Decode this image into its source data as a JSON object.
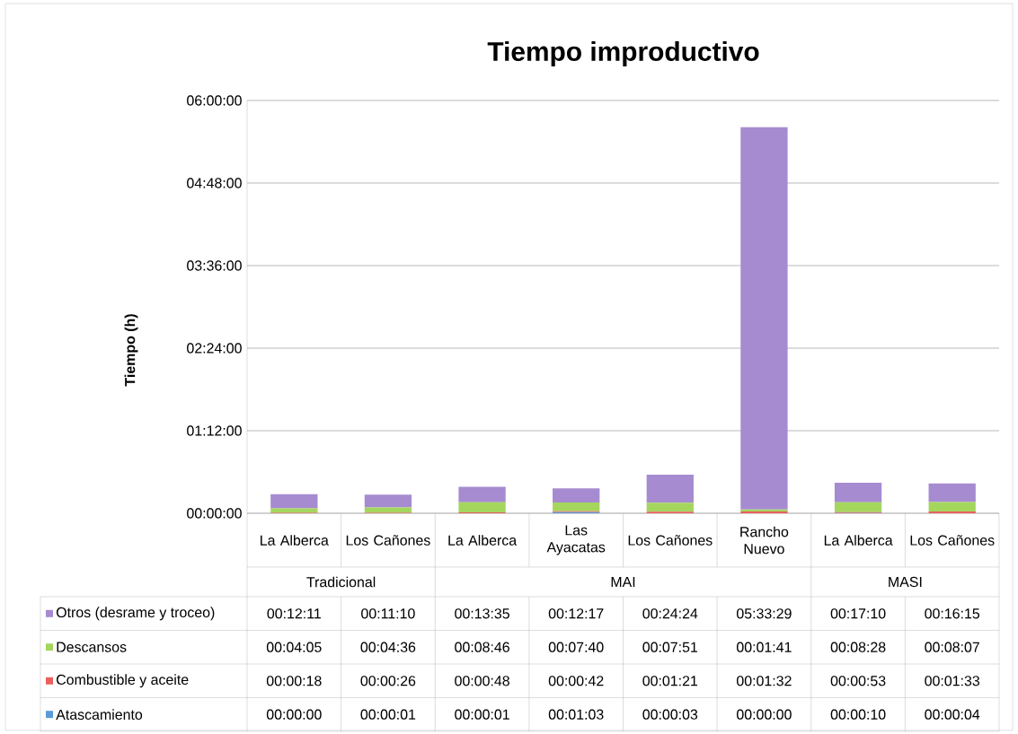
{
  "chart_data": {
    "type": "bar",
    "title": "Tiempo improductivo",
    "ylabel": "Tiempo (h)",
    "categories": [
      "La Alberca",
      "Los Cañones",
      "La Alberca",
      "Las Ayacatas",
      "Los Cañones",
      "Rancho Nuevo",
      "La Alberca",
      "Los Cañones"
    ],
    "annotations": [
      "Tradicional",
      "MAI",
      "MASI"
    ],
    "stacked": true,
    "grid": "y",
    "legend": "bottom",
    "ylim": [
      0,
      6
    ],
    "yticks": [
      {
        "value": 0,
        "label": "00:00:00"
      },
      {
        "value": 1.2,
        "label": "01:12:00"
      },
      {
        "value": 2.4,
        "label": "02:24:00"
      },
      {
        "value": 3.6,
        "label": "03:36:00"
      },
      {
        "value": 4.8,
        "label": "04:48:00"
      },
      {
        "value": 6,
        "label": "06:00:00"
      }
    ],
    "series": [
      {
        "name": "Atascamiento",
        "color": "#5b9bd5",
        "values": [
          0,
          0.00028,
          0.00028,
          0.0175,
          0.00083,
          0,
          0.00278,
          0.00111
        ],
        "value_labels": [
          "00:00:00",
          "00:00:01",
          "00:00:01",
          "00:01:03",
          "00:00:03",
          "00:00:00",
          "00:00:10",
          "00:00:04"
        ]
      },
      {
        "name": "Combustible y aceite",
        "color": "#e9605e",
        "values": [
          0.005,
          0.00722,
          0.01333,
          0.01167,
          0.0225,
          0.02556,
          0.01472,
          0.02583
        ],
        "value_labels": [
          "00:00:18",
          "00:00:26",
          "00:00:48",
          "00:00:42",
          "00:01:21",
          "00:01:32",
          "00:00:53",
          "00:01:33"
        ]
      },
      {
        "name": "Descansos",
        "color": "#a4d65e",
        "values": [
          0.06806,
          0.07667,
          0.14611,
          0.12778,
          0.13083,
          0.02806,
          0.14111,
          0.13528
        ],
        "value_labels": [
          "00:04:05",
          "00:04:36",
          "00:08:46",
          "00:07:40",
          "00:07:51",
          "00:01:41",
          "00:08:28",
          "00:08:07"
        ]
      },
      {
        "name": "Otros (desrame y troceo)",
        "color": "#a68bd0",
        "values": [
          0.20306,
          0.18611,
          0.22639,
          0.20472,
          0.40667,
          5.55806,
          0.28611,
          0.27083
        ],
        "value_labels": [
          "00:12:11",
          "00:11:10",
          "00:13:35",
          "00:12:17",
          "00:24:24",
          "05:33:29",
          "00:17:10",
          "00:16:15"
        ]
      }
    ]
  }
}
